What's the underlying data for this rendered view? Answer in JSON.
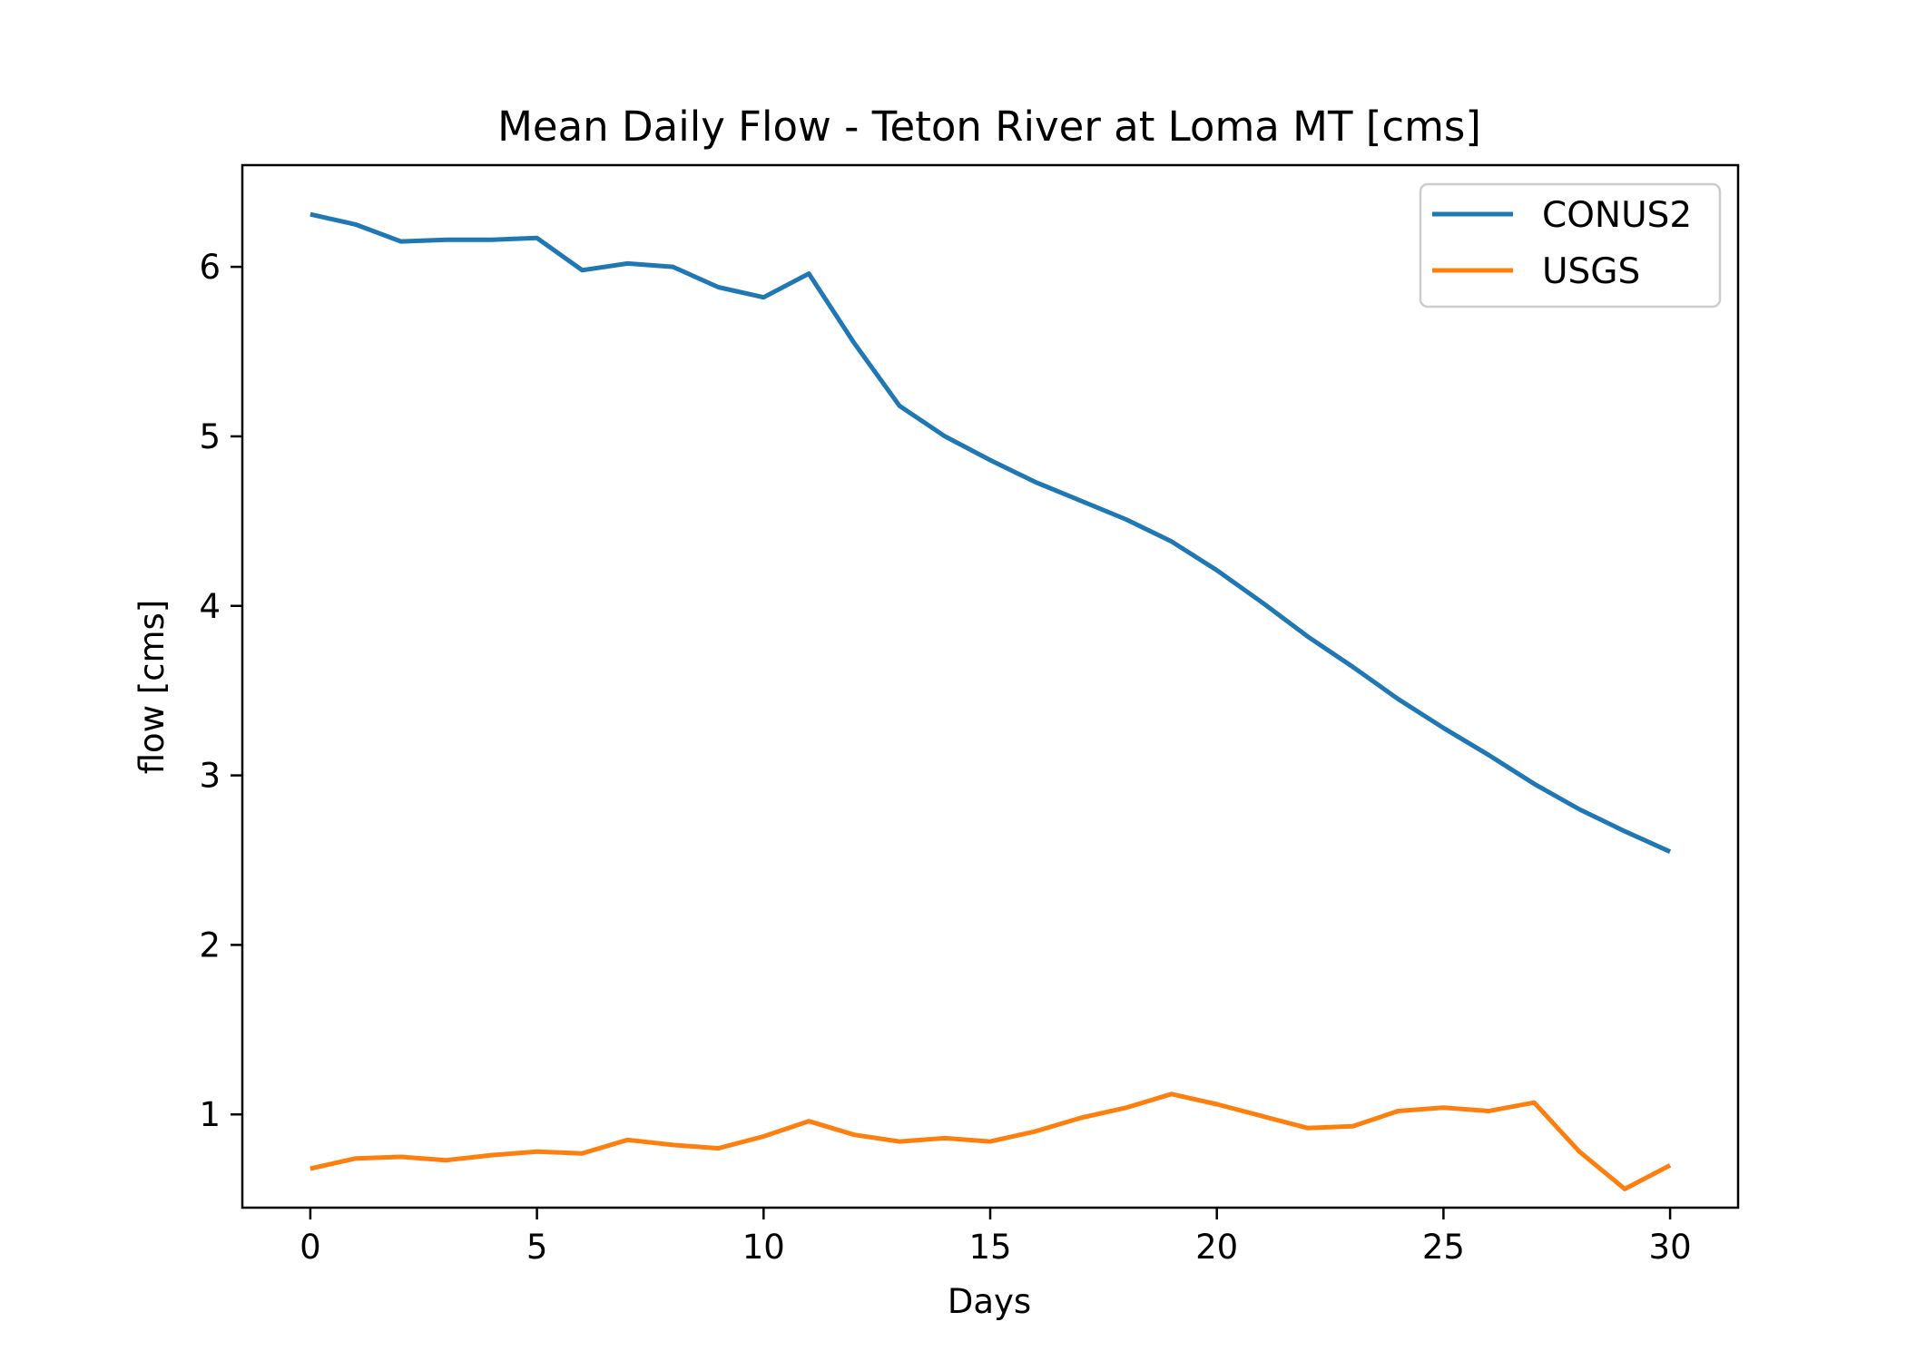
{
  "chart_data": {
    "type": "line",
    "title": "Mean Daily Flow - Teton River at Loma MT [cms]",
    "xlabel": "Days",
    "ylabel": "flow [cms]",
    "xlim": [
      -1.5,
      31.5
    ],
    "ylim": [
      0.45,
      6.6
    ],
    "x_ticks": [
      0,
      5,
      10,
      15,
      20,
      25,
      30
    ],
    "y_ticks": [
      1,
      2,
      3,
      4,
      5,
      6
    ],
    "grid": false,
    "legend_position": "top-right",
    "x": [
      0,
      1,
      2,
      3,
      4,
      5,
      6,
      7,
      8,
      9,
      10,
      11,
      12,
      13,
      14,
      15,
      16,
      17,
      18,
      19,
      20,
      21,
      22,
      23,
      24,
      25,
      26,
      27,
      28,
      29,
      30
    ],
    "series": [
      {
        "name": "CONUS2",
        "color": "#1f77b4",
        "values": [
          6.31,
          6.25,
          6.15,
          6.16,
          6.16,
          6.17,
          5.98,
          6.02,
          6.0,
          5.88,
          5.82,
          5.96,
          5.55,
          5.18,
          5.0,
          4.86,
          4.73,
          4.62,
          4.51,
          4.38,
          4.21,
          4.02,
          3.82,
          3.64,
          3.45,
          3.28,
          3.12,
          2.95,
          2.8,
          2.67,
          2.55
        ]
      },
      {
        "name": "USGS",
        "color": "#ff7f0e",
        "values": [
          0.68,
          0.74,
          0.75,
          0.73,
          0.76,
          0.78,
          0.77,
          0.85,
          0.82,
          0.8,
          0.87,
          0.96,
          0.88,
          0.84,
          0.86,
          0.84,
          0.9,
          0.98,
          1.04,
          1.12,
          1.06,
          0.99,
          0.92,
          0.93,
          1.02,
          1.04,
          1.02,
          1.07,
          0.78,
          0.56,
          0.7
        ]
      }
    ]
  }
}
